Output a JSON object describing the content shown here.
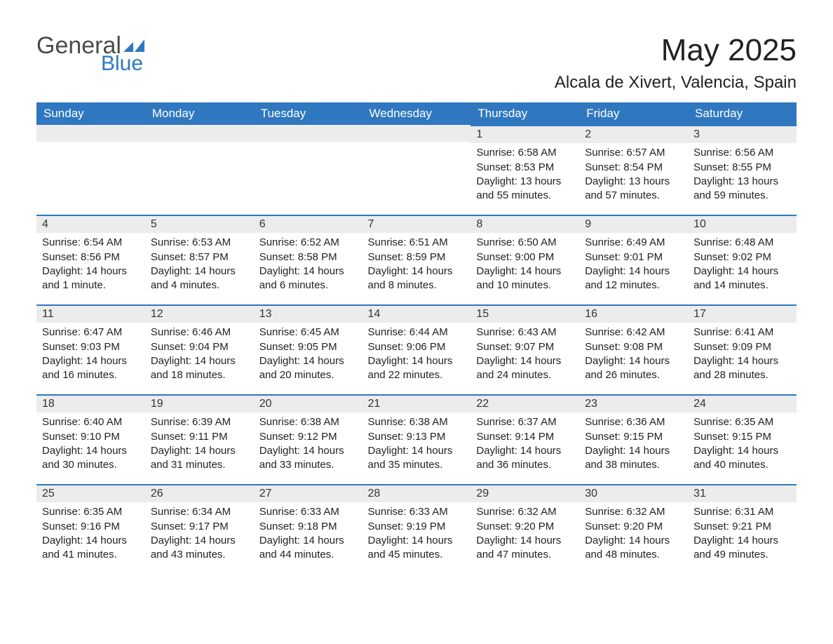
{
  "logo": {
    "text_general": "General",
    "text_blue": "Blue",
    "swoosh_color": "#2f78bf"
  },
  "title": "May 2025",
  "location": "Alcala de Xivert, Valencia, Spain",
  "colors": {
    "header_bg": "#2f78bf",
    "header_text": "#ffffff",
    "day_header_bg": "#ececec",
    "day_border_top": "#2f78bf",
    "body_text": "#222222",
    "page_bg": "#ffffff"
  },
  "weekdays": [
    "Sunday",
    "Monday",
    "Tuesday",
    "Wednesday",
    "Thursday",
    "Friday",
    "Saturday"
  ],
  "weeks": [
    [
      null,
      null,
      null,
      null,
      {
        "day": "1",
        "sunrise": "Sunrise: 6:58 AM",
        "sunset": "Sunset: 8:53 PM",
        "daylight": "Daylight: 13 hours and 55 minutes."
      },
      {
        "day": "2",
        "sunrise": "Sunrise: 6:57 AM",
        "sunset": "Sunset: 8:54 PM",
        "daylight": "Daylight: 13 hours and 57 minutes."
      },
      {
        "day": "3",
        "sunrise": "Sunrise: 6:56 AM",
        "sunset": "Sunset: 8:55 PM",
        "daylight": "Daylight: 13 hours and 59 minutes."
      }
    ],
    [
      {
        "day": "4",
        "sunrise": "Sunrise: 6:54 AM",
        "sunset": "Sunset: 8:56 PM",
        "daylight": "Daylight: 14 hours and 1 minute."
      },
      {
        "day": "5",
        "sunrise": "Sunrise: 6:53 AM",
        "sunset": "Sunset: 8:57 PM",
        "daylight": "Daylight: 14 hours and 4 minutes."
      },
      {
        "day": "6",
        "sunrise": "Sunrise: 6:52 AM",
        "sunset": "Sunset: 8:58 PM",
        "daylight": "Daylight: 14 hours and 6 minutes."
      },
      {
        "day": "7",
        "sunrise": "Sunrise: 6:51 AM",
        "sunset": "Sunset: 8:59 PM",
        "daylight": "Daylight: 14 hours and 8 minutes."
      },
      {
        "day": "8",
        "sunrise": "Sunrise: 6:50 AM",
        "sunset": "Sunset: 9:00 PM",
        "daylight": "Daylight: 14 hours and 10 minutes."
      },
      {
        "day": "9",
        "sunrise": "Sunrise: 6:49 AM",
        "sunset": "Sunset: 9:01 PM",
        "daylight": "Daylight: 14 hours and 12 minutes."
      },
      {
        "day": "10",
        "sunrise": "Sunrise: 6:48 AM",
        "sunset": "Sunset: 9:02 PM",
        "daylight": "Daylight: 14 hours and 14 minutes."
      }
    ],
    [
      {
        "day": "11",
        "sunrise": "Sunrise: 6:47 AM",
        "sunset": "Sunset: 9:03 PM",
        "daylight": "Daylight: 14 hours and 16 minutes."
      },
      {
        "day": "12",
        "sunrise": "Sunrise: 6:46 AM",
        "sunset": "Sunset: 9:04 PM",
        "daylight": "Daylight: 14 hours and 18 minutes."
      },
      {
        "day": "13",
        "sunrise": "Sunrise: 6:45 AM",
        "sunset": "Sunset: 9:05 PM",
        "daylight": "Daylight: 14 hours and 20 minutes."
      },
      {
        "day": "14",
        "sunrise": "Sunrise: 6:44 AM",
        "sunset": "Sunset: 9:06 PM",
        "daylight": "Daylight: 14 hours and 22 minutes."
      },
      {
        "day": "15",
        "sunrise": "Sunrise: 6:43 AM",
        "sunset": "Sunset: 9:07 PM",
        "daylight": "Daylight: 14 hours and 24 minutes."
      },
      {
        "day": "16",
        "sunrise": "Sunrise: 6:42 AM",
        "sunset": "Sunset: 9:08 PM",
        "daylight": "Daylight: 14 hours and 26 minutes."
      },
      {
        "day": "17",
        "sunrise": "Sunrise: 6:41 AM",
        "sunset": "Sunset: 9:09 PM",
        "daylight": "Daylight: 14 hours and 28 minutes."
      }
    ],
    [
      {
        "day": "18",
        "sunrise": "Sunrise: 6:40 AM",
        "sunset": "Sunset: 9:10 PM",
        "daylight": "Daylight: 14 hours and 30 minutes."
      },
      {
        "day": "19",
        "sunrise": "Sunrise: 6:39 AM",
        "sunset": "Sunset: 9:11 PM",
        "daylight": "Daylight: 14 hours and 31 minutes."
      },
      {
        "day": "20",
        "sunrise": "Sunrise: 6:38 AM",
        "sunset": "Sunset: 9:12 PM",
        "daylight": "Daylight: 14 hours and 33 minutes."
      },
      {
        "day": "21",
        "sunrise": "Sunrise: 6:38 AM",
        "sunset": "Sunset: 9:13 PM",
        "daylight": "Daylight: 14 hours and 35 minutes."
      },
      {
        "day": "22",
        "sunrise": "Sunrise: 6:37 AM",
        "sunset": "Sunset: 9:14 PM",
        "daylight": "Daylight: 14 hours and 36 minutes."
      },
      {
        "day": "23",
        "sunrise": "Sunrise: 6:36 AM",
        "sunset": "Sunset: 9:15 PM",
        "daylight": "Daylight: 14 hours and 38 minutes."
      },
      {
        "day": "24",
        "sunrise": "Sunrise: 6:35 AM",
        "sunset": "Sunset: 9:15 PM",
        "daylight": "Daylight: 14 hours and 40 minutes."
      }
    ],
    [
      {
        "day": "25",
        "sunrise": "Sunrise: 6:35 AM",
        "sunset": "Sunset: 9:16 PM",
        "daylight": "Daylight: 14 hours and 41 minutes."
      },
      {
        "day": "26",
        "sunrise": "Sunrise: 6:34 AM",
        "sunset": "Sunset: 9:17 PM",
        "daylight": "Daylight: 14 hours and 43 minutes."
      },
      {
        "day": "27",
        "sunrise": "Sunrise: 6:33 AM",
        "sunset": "Sunset: 9:18 PM",
        "daylight": "Daylight: 14 hours and 44 minutes."
      },
      {
        "day": "28",
        "sunrise": "Sunrise: 6:33 AM",
        "sunset": "Sunset: 9:19 PM",
        "daylight": "Daylight: 14 hours and 45 minutes."
      },
      {
        "day": "29",
        "sunrise": "Sunrise: 6:32 AM",
        "sunset": "Sunset: 9:20 PM",
        "daylight": "Daylight: 14 hours and 47 minutes."
      },
      {
        "day": "30",
        "sunrise": "Sunrise: 6:32 AM",
        "sunset": "Sunset: 9:20 PM",
        "daylight": "Daylight: 14 hours and 48 minutes."
      },
      {
        "day": "31",
        "sunrise": "Sunrise: 6:31 AM",
        "sunset": "Sunset: 9:21 PM",
        "daylight": "Daylight: 14 hours and 49 minutes."
      }
    ]
  ]
}
